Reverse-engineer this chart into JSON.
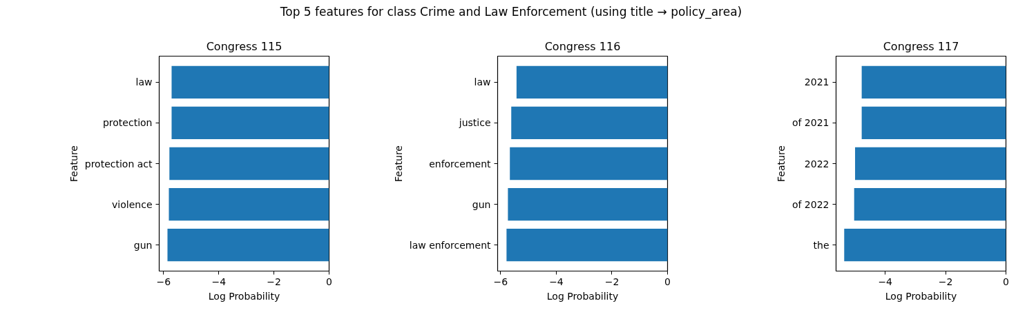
{
  "chart_data": [
    {
      "type": "bar",
      "orientation": "horizontal",
      "title": "Congress 115",
      "annotations": [
        "Top 5 features for class Crime and Law Enforcement (using title → policy_area)"
      ],
      "xlabel": "Log Probability",
      "ylabel": "Feature",
      "categories": [
        "law",
        "protection",
        "protection act",
        "violence",
        "gun"
      ],
      "series": [
        {
          "color": "#1f77b4",
          "values": [
            -5.71,
            -5.71,
            -5.79,
            -5.81,
            -5.86
          ]
        }
      ],
      "xlim": [
        -6.16,
        0
      ],
      "xticks": [
        {
          "value": -6,
          "label": "−6"
        },
        {
          "value": -4,
          "label": "−4"
        },
        {
          "value": -2,
          "label": "−2"
        },
        0
      ],
      "grid": false
    },
    {
      "type": "bar",
      "orientation": "horizontal",
      "title": "Congress 116",
      "xlabel": "Log Probability",
      "ylabel": "Feature",
      "categories": [
        "law",
        "justice",
        "enforcement",
        "gun",
        "law enforcement"
      ],
      "series": [
        {
          "color": "#1f77b4",
          "values": [
            -5.43,
            -5.62,
            -5.67,
            -5.74,
            -5.79
          ]
        }
      ],
      "xlim": [
        -6.11,
        0
      ],
      "xticks": [
        {
          "value": -6,
          "label": "−6"
        },
        {
          "value": -4,
          "label": "−4"
        },
        {
          "value": -2,
          "label": "−2"
        },
        0
      ],
      "grid": false
    },
    {
      "type": "bar",
      "orientation": "horizontal",
      "title": "Congress 117",
      "xlabel": "Log Probability",
      "ylabel": "Feature",
      "categories": [
        "2021",
        "of 2021",
        "2022",
        "of 2022",
        "the"
      ],
      "series": [
        {
          "color": "#1f77b4",
          "values": [
            -4.78,
            -4.78,
            -5.0,
            -5.03,
            -5.36
          ]
        }
      ],
      "xlim": [
        -5.63,
        0
      ],
      "xticks": [
        {
          "value": -4,
          "label": "−4"
        },
        {
          "value": -2,
          "label": "−2"
        },
        0
      ],
      "grid": false
    }
  ]
}
